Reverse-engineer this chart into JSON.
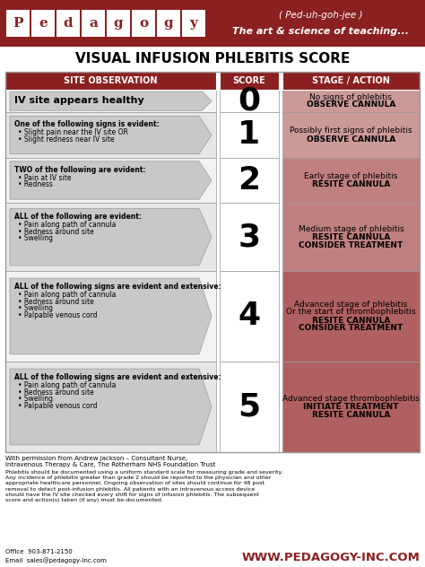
{
  "title": "VISUAL INFUSION PHLEBITIS SCORE",
  "header_bg": "#8B2020",
  "col_headers": [
    "SITE OBSERVATION",
    "SCORE",
    "STAGE / ACTION"
  ],
  "rows": [
    {
      "score": "0",
      "obs_title": "IV site appears healthy",
      "obs_bullets": [],
      "obs_title_bold": true,
      "stage_lines": [
        "No signs of phlebitis",
        "OBSERVE CANNULA"
      ],
      "stage_bg": "#cc9999"
    },
    {
      "score": "1",
      "obs_title": "One of the following signs is evident:",
      "obs_bullets": [
        "Slight pain near the IV site OR",
        "Slight redness near IV site"
      ],
      "obs_title_bold": false,
      "stage_lines": [
        "Possibly first signs of phlebitis",
        "OBSERVE CANNULA"
      ],
      "stage_bg": "#cc9999"
    },
    {
      "score": "2",
      "obs_title": "TWO of the following are evident:",
      "obs_bullets": [
        "Pain at IV site",
        "Redness"
      ],
      "obs_title_bold": false,
      "stage_lines": [
        "Early stage of phlebitis",
        "RESITE CANNULA"
      ],
      "stage_bg": "#c08080"
    },
    {
      "score": "3",
      "obs_title": "ALL of the following are evident:",
      "obs_bullets": [
        "Pain along path of cannula",
        "Redness around site",
        "Swelling"
      ],
      "obs_title_bold": false,
      "stage_lines": [
        "Medium stage of phlebitis",
        "RESITE CANNULA",
        "CONSIDER TREATMENT"
      ],
      "stage_bg": "#c08080"
    },
    {
      "score": "4",
      "obs_title": "ALL of the following signs are evident and extensive:",
      "obs_bullets": [
        "Pain along path of cannula",
        "Redness around site",
        "Swelling",
        "Palpable venous cord"
      ],
      "obs_title_bold": false,
      "stage_lines": [
        "Advanced stage of phlebitis",
        "Or the start of thrombophlebitis",
        "RESITE CANNULA",
        "CONSIDER TREATMENT"
      ],
      "stage_bg": "#b06060"
    },
    {
      "score": "5",
      "obs_title": "ALL of the following signs are evident and extensive:",
      "obs_bullets": [
        "Pain along path of cannula",
        "Redness around site",
        "Swelling",
        "Palpable venous cord"
      ],
      "obs_title_bold": false,
      "stage_lines": [
        "Advanced stage thrombophlebitis",
        "INITIATE TREATMENT",
        "RESITE CANNULA"
      ],
      "stage_bg": "#b06060"
    }
  ],
  "footer_credit": "With permission from Andrew Jackson – Consultant Nurse,",
  "footer_credit2": "Intravenous Therapy & Care, The Rotherham NHS Foundation Trust",
  "footer_body": "Phlebitis should be documented using a uniform standard scale for measuring grade and severity. Any incidence of phlebitis greater than grade 2 should be reported to the physician and other appropriate healthcare personnel. Ongoing observation of sites should continue for 48 post removal to detect post-infusion phlebitis. All patients with an intravenous access device should have the IV site checked every shift for signs of infusion phlebitis. The subsequent score and action(s) taken (if any) must be documented.",
  "contact_line1": "Office  903-871-2150",
  "contact_line2": "Email  sales@pedagogy-inc.com",
  "website": "WWW.PEDAGOGY-INC.COM",
  "pedagogy_bg": "#8B2020",
  "bg_color": "#FFFFFF",
  "row_bg_even": "#f2f2f2",
  "row_bg_odd": "#e6e6e6",
  "arrow_fill": "#c8c8c8",
  "arrow_edge": "#999999",
  "table_border": "#999999"
}
